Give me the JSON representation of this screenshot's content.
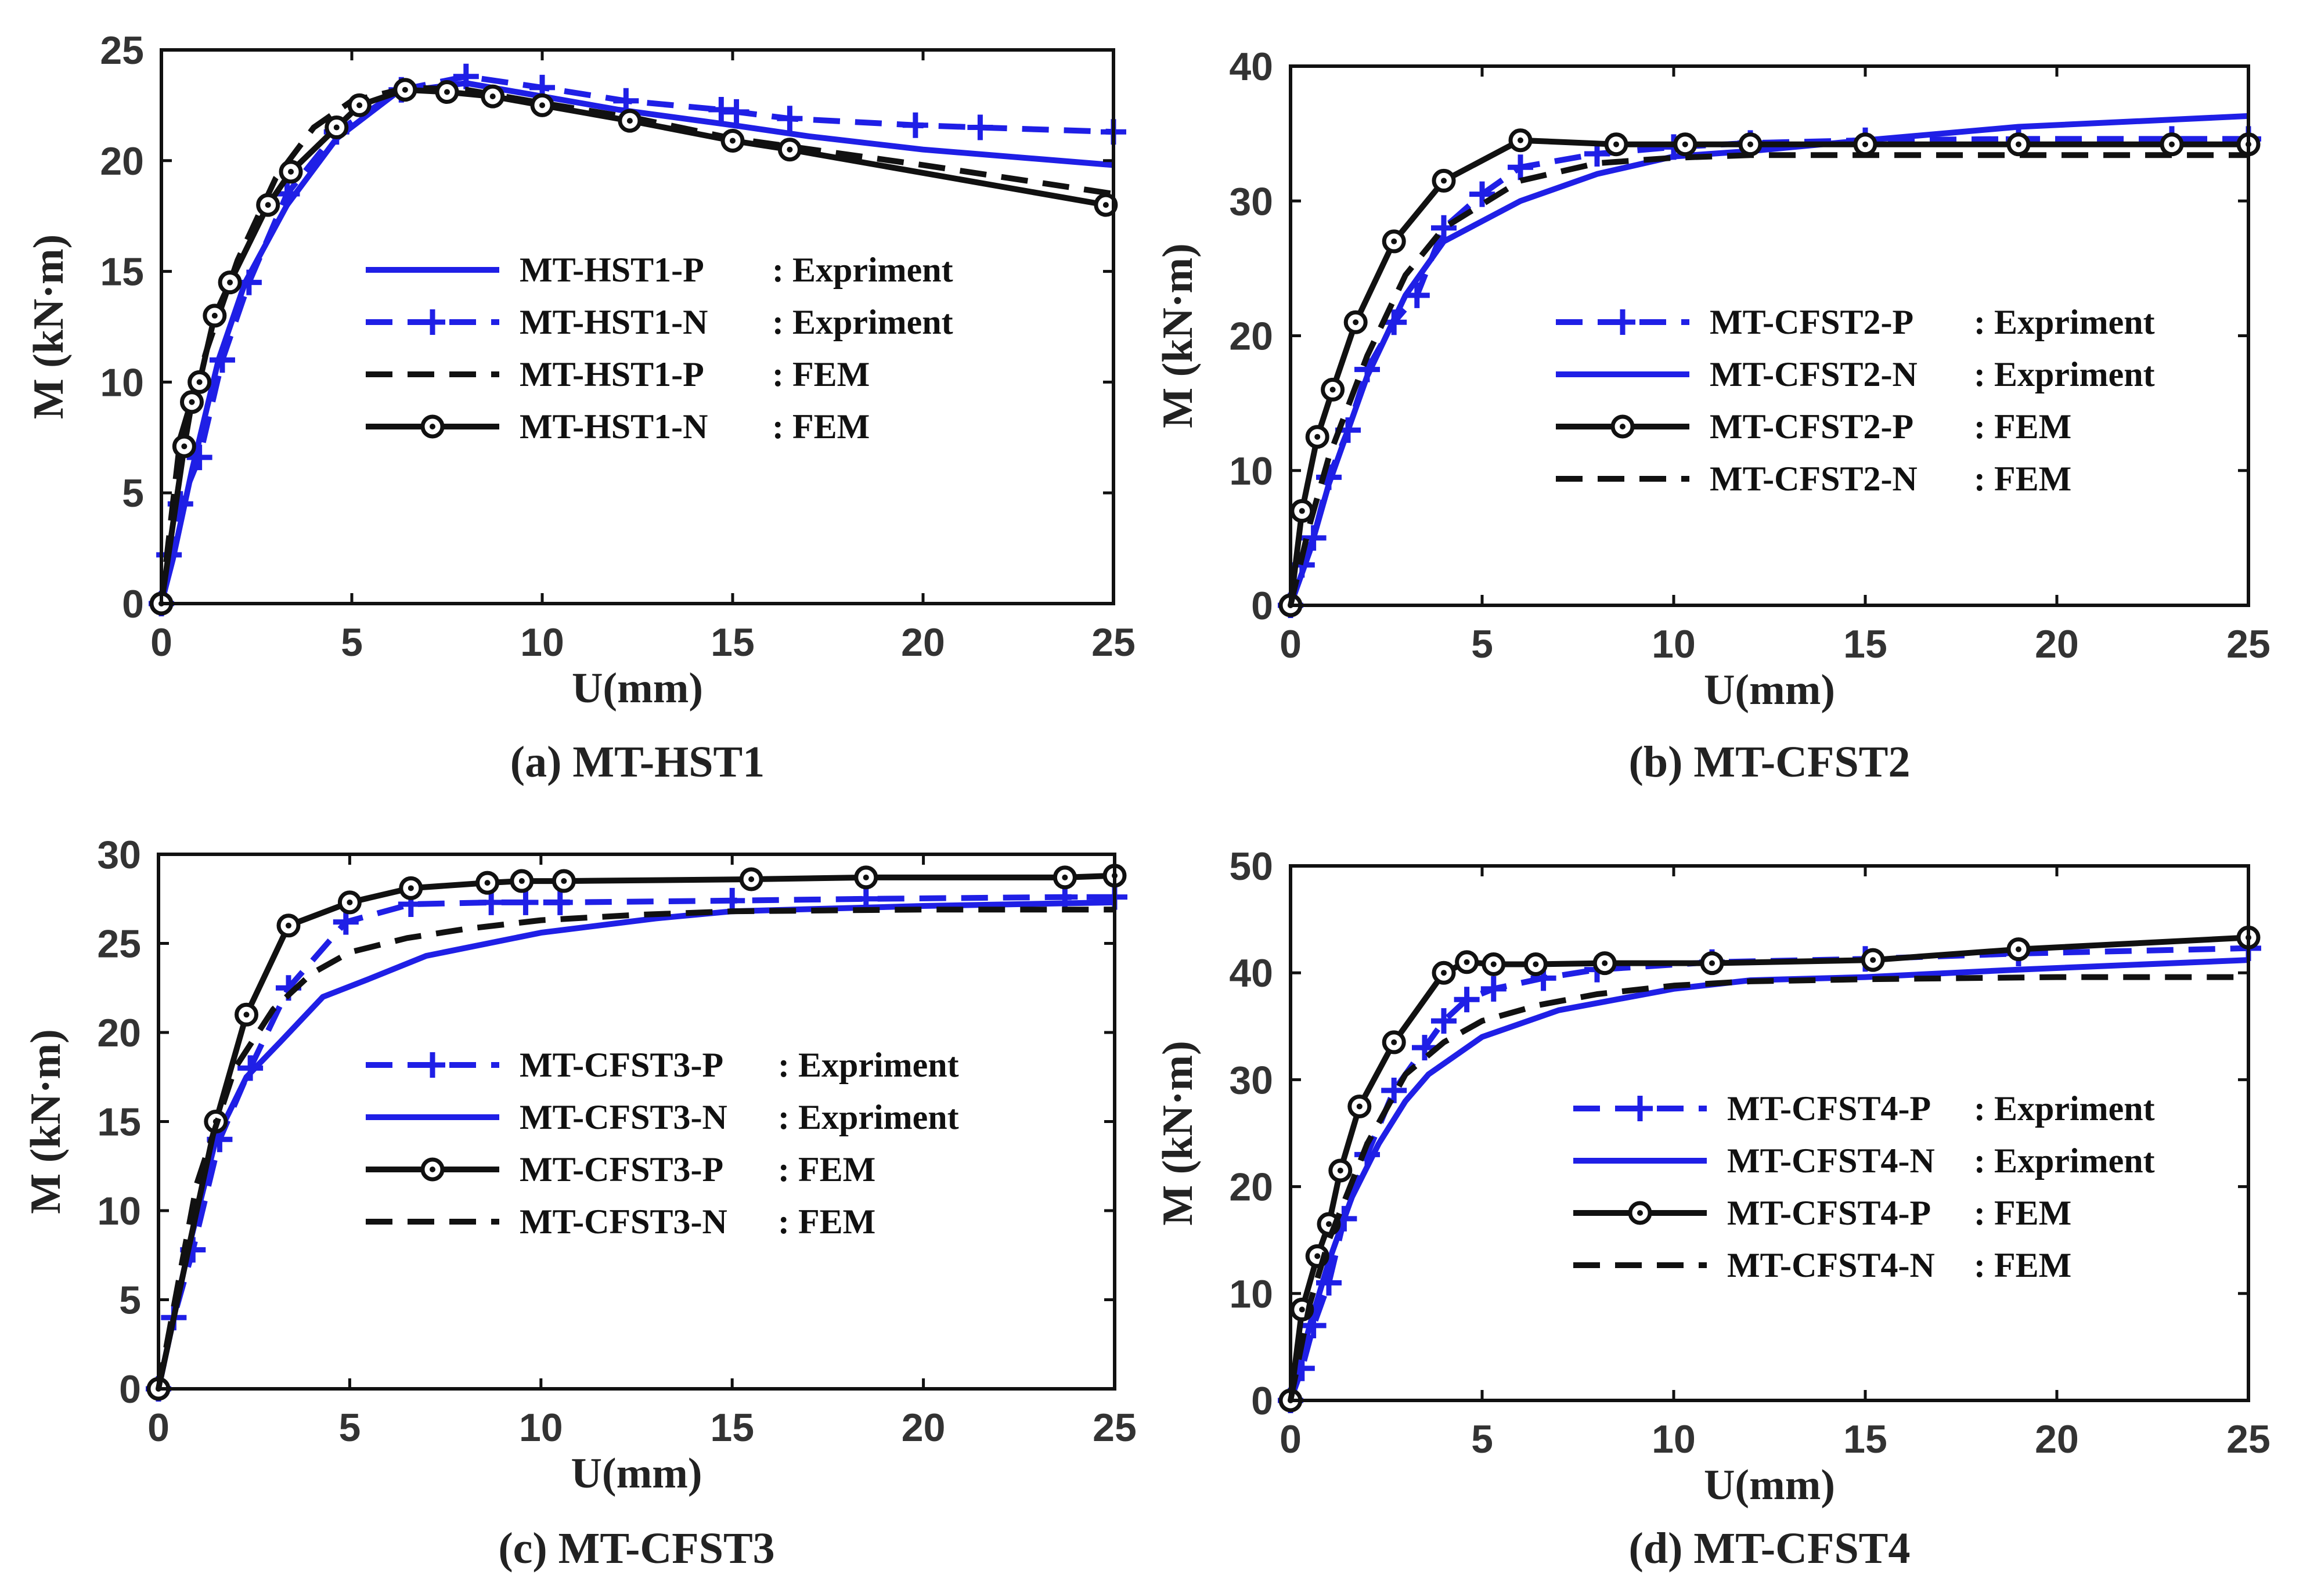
{
  "colors": {
    "blue": "#1f1fe6",
    "black": "#111111"
  },
  "chart_data": [
    {
      "type": "line",
      "caption": "(a) MT-HST1",
      "xlabel": "U(mm)",
      "ylabel": "M (kN·m)",
      "xlim": [
        0,
        25
      ],
      "ylim": [
        0,
        25
      ],
      "xticks": [
        0,
        5,
        10,
        15,
        20,
        25
      ],
      "yticks": [
        0,
        5,
        10,
        15,
        20,
        25
      ],
      "grid": false,
      "legend_position": "center-right",
      "series": [
        {
          "name": "MT-HST1-P",
          "method": ": Expriment",
          "style": "blue-solid",
          "x": [
            0,
            0.3,
            0.8,
            1.5,
            2.2,
            3.3,
            4.6,
            6.2,
            8,
            10,
            12,
            15,
            17,
            20,
            25
          ],
          "y": [
            0,
            2,
            6,
            11,
            14.5,
            18,
            21,
            23.1,
            23.5,
            22.9,
            22.3,
            21.6,
            21.1,
            20.5,
            19.8
          ]
        },
        {
          "name": "MT-HST1-N",
          "method": ": Expriment",
          "style": "blue-dash-plus",
          "x": [
            0,
            0.2,
            0.5,
            1,
            1.6,
            2.3,
            3.3,
            4.6,
            6.3,
            8,
            10,
            12.2,
            14.7,
            15.1,
            16.5,
            19.8,
            21.5,
            25
          ],
          "y": [
            0,
            2.2,
            4.5,
            6.6,
            11,
            14.5,
            18.5,
            21.3,
            23.2,
            23.8,
            23.3,
            22.7,
            22.3,
            22.2,
            21.9,
            21.6,
            21.5,
            21.3
          ]
        },
        {
          "name": "MT-HST1-P",
          "method": ": FEM",
          "style": "black-dash",
          "x": [
            0,
            0.5,
            1.2,
            2,
            3,
            4,
            5,
            6.5,
            8,
            10,
            12.5,
            15,
            17.5,
            20,
            25
          ],
          "y": [
            0,
            7.5,
            11.5,
            15.5,
            19.2,
            21.5,
            22.7,
            23.3,
            23.2,
            22.6,
            21.9,
            21,
            20.4,
            19.8,
            18.5
          ]
        },
        {
          "name": "MT-HST1-N",
          "method": ": FEM",
          "style": "black-solid-circle",
          "x": [
            0,
            0.6,
            0.8,
            1,
            1.4,
            1.8,
            2.8,
            3.4,
            4.6,
            5.2,
            6.4,
            7.5,
            8.7,
            10,
            12.3,
            15,
            16.5,
            24.8
          ],
          "y": [
            0,
            7.1,
            9.1,
            10,
            13,
            14.5,
            18,
            19.5,
            21.5,
            22.5,
            23.2,
            23.1,
            22.9,
            22.5,
            21.8,
            20.9,
            20.5,
            18
          ]
        }
      ]
    },
    {
      "type": "line",
      "caption": "(b) MT-CFST2",
      "xlabel": "U(mm)",
      "ylabel": "M (kN·m)",
      "xlim": [
        0,
        25
      ],
      "ylim": [
        0,
        40
      ],
      "xticks": [
        0,
        5,
        10,
        15,
        20,
        25
      ],
      "yticks": [
        0,
        10,
        20,
        30,
        40
      ],
      "grid": false,
      "legend_position": "center-right",
      "series": [
        {
          "name": "MT-CFST2-P",
          "method": ": Expriment",
          "style": "blue-dash-plus",
          "x": [
            0,
            0.3,
            0.6,
            1,
            1.5,
            2,
            2.7,
            3.3,
            4,
            5,
            6,
            8,
            10,
            12,
            15,
            19,
            23,
            25
          ],
          "y": [
            0,
            3,
            5,
            9.5,
            13,
            17.5,
            21,
            23,
            28,
            30.5,
            32.5,
            33.5,
            34,
            34.3,
            34.5,
            34.6,
            34.6,
            34.6
          ]
        },
        {
          "name": "MT-CFST2-N",
          "method": ": Expriment",
          "style": "blue-solid",
          "x": [
            0,
            0.5,
            1,
            2,
            3,
            4,
            6,
            8,
            10,
            12,
            15,
            19,
            25
          ],
          "y": [
            0,
            4,
            9,
            17,
            23,
            27,
            30,
            32,
            33.3,
            33.7,
            34.5,
            35.5,
            36.3
          ]
        },
        {
          "name": "MT-CFST2-P",
          "method": ": FEM",
          "style": "black-solid-circle",
          "x": [
            0,
            0.3,
            0.7,
            1.1,
            1.7,
            2.7,
            4,
            6,
            8.5,
            10.3,
            12,
            15,
            19,
            23,
            25
          ],
          "y": [
            0,
            7,
            12.5,
            16,
            21,
            27,
            31.5,
            34.5,
            34.2,
            34.2,
            34.2,
            34.2,
            34.2,
            34.2,
            34.2
          ]
        },
        {
          "name": "MT-CFST2-N",
          "method": ": FEM",
          "style": "black-dash",
          "x": [
            0,
            0.5,
            1,
            2,
            3,
            4,
            6,
            8,
            10,
            12,
            15,
            20,
            25
          ],
          "y": [
            0,
            6,
            11,
            18.5,
            24.5,
            28,
            31.5,
            32.8,
            33.2,
            33.4,
            33.4,
            33.4,
            33.4
          ]
        }
      ]
    },
    {
      "type": "line",
      "caption": "(c) MT-CFST3",
      "xlabel": "U(mm)",
      "ylabel": "M (kN·m)",
      "xlim": [
        0,
        25
      ],
      "ylim": [
        0,
        30
      ],
      "xticks": [
        0,
        5,
        10,
        15,
        20,
        25
      ],
      "yticks": [
        0,
        5,
        10,
        15,
        20,
        25,
        30
      ],
      "grid": false,
      "legend_position": "center-right",
      "series": [
        {
          "name": "MT-CFST3-P",
          "method": ": Expriment",
          "style": "blue-dash-plus",
          "x": [
            0,
            0.4,
            0.9,
            1.6,
            2.4,
            3.4,
            4.9,
            6.6,
            8.7,
            9.6,
            10.5,
            15,
            18.5,
            23.7,
            25
          ],
          "y": [
            0,
            4,
            7.8,
            14,
            18,
            22.5,
            26.2,
            27.2,
            27.3,
            27.3,
            27.3,
            27.4,
            27.5,
            27.6,
            27.6
          ]
        },
        {
          "name": "MT-CFST3-N",
          "method": ": Expriment",
          "style": "blue-solid",
          "x": [
            0,
            0.8,
            1.5,
            2.3,
            3.2,
            4.3,
            5.5,
            7,
            10,
            13,
            15,
            20,
            25
          ],
          "y": [
            0,
            8,
            14,
            17.5,
            19.5,
            22,
            23,
            24.3,
            25.6,
            26.4,
            26.8,
            27.1,
            27.3
          ]
        },
        {
          "name": "MT-CFST3-P",
          "method": ": FEM",
          "style": "black-solid-circle",
          "x": [
            0,
            1.5,
            2.3,
            3.4,
            5,
            6.6,
            8.6,
            9.5,
            10.6,
            15.5,
            18.5,
            23.7,
            25
          ],
          "y": [
            0,
            15,
            21,
            26,
            27.3,
            28.1,
            28.4,
            28.5,
            28.5,
            28.6,
            28.7,
            28.7,
            28.8
          ]
        },
        {
          "name": "MT-CFST3-N",
          "method": ": FEM",
          "style": "black-dash",
          "x": [
            0,
            1,
            2,
            3,
            4,
            5,
            6.5,
            8,
            10,
            12.5,
            15,
            20,
            25
          ],
          "y": [
            0,
            11.5,
            18,
            21.3,
            23.3,
            24.5,
            25.3,
            25.8,
            26.3,
            26.6,
            26.8,
            26.9,
            26.9
          ]
        }
      ]
    },
    {
      "type": "line",
      "caption": "(d) MT-CFST4",
      "xlabel": "U(mm)",
      "ylabel": "M (kN·m)",
      "xlim": [
        0,
        25
      ],
      "ylim": [
        0,
        50
      ],
      "xticks": [
        0,
        5,
        10,
        15,
        20,
        25
      ],
      "yticks": [
        0,
        10,
        20,
        30,
        40,
        50
      ],
      "grid": false,
      "legend_position": "center-right",
      "series": [
        {
          "name": "MT-CFST4-P",
          "method": ": Expriment",
          "style": "blue-dash-plus",
          "x": [
            0,
            0.3,
            0.6,
            1,
            1.4,
            2,
            2.7,
            3.5,
            4,
            4.6,
            5.3,
            6.6,
            8,
            11,
            15,
            19,
            25
          ],
          "y": [
            0,
            3,
            7,
            11,
            17,
            23,
            29,
            33,
            35.5,
            37.5,
            38.5,
            39.5,
            40.3,
            41,
            41.3,
            41.8,
            42.3
          ]
        },
        {
          "name": "MT-CFST4-N",
          "method": ": Expriment",
          "style": "blue-solid",
          "x": [
            0,
            0.5,
            1,
            1.6,
            2.3,
            3,
            3.6,
            5,
            7,
            10,
            12,
            15,
            19,
            25
          ],
          "y": [
            0,
            7,
            13,
            19,
            24,
            28,
            30.5,
            34,
            36.5,
            38.5,
            39.3,
            39.6,
            40.3,
            41.2
          ]
        },
        {
          "name": "MT-CFST4-P",
          "method": ": FEM",
          "style": "black-solid-circle",
          "x": [
            0,
            0.3,
            0.7,
            1,
            1.3,
            1.8,
            2.7,
            4,
            4.6,
            5.3,
            6.4,
            8.2,
            11,
            15.2,
            19,
            25
          ],
          "y": [
            0,
            8.5,
            13.5,
            16.5,
            21.5,
            27.5,
            33.5,
            40,
            41,
            40.8,
            40.8,
            40.9,
            40.9,
            41.2,
            42.2,
            43.3
          ]
        },
        {
          "name": "MT-CFST4-N",
          "method": ": FEM",
          "style": "black-dash",
          "x": [
            0,
            0.5,
            1,
            2,
            3,
            4,
            5,
            6.5,
            8,
            10,
            12,
            15,
            20,
            25
          ],
          "y": [
            0,
            9,
            15,
            24,
            30.5,
            33.5,
            35.5,
            37,
            38,
            38.8,
            39.2,
            39.4,
            39.6,
            39.6
          ]
        }
      ]
    }
  ]
}
